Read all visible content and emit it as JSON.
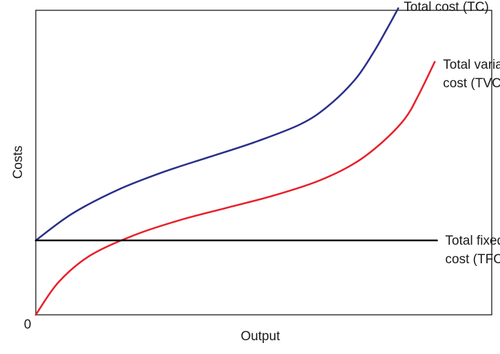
{
  "chart_data": {
    "type": "line",
    "title": "",
    "xlabel": "Output",
    "ylabel": "Costs",
    "origin_label": "0",
    "xlim": [
      0,
      100
    ],
    "ylim": [
      0,
      100
    ],
    "grid": false,
    "legend": "none",
    "series": [
      {
        "name": "Total cost (TC)",
        "label_lines": [
          "Total cost (TC)"
        ],
        "color": "#2b2f8a",
        "x": [
          0,
          8,
          18,
          28,
          38,
          48,
          58,
          64,
          70,
          74,
          77,
          79.5
        ],
        "y": [
          25,
          34,
          42,
          48,
          53,
          58,
          64,
          70,
          79,
          88,
          96,
          103
        ]
      },
      {
        "name": "Total variable cost (TVC)",
        "label_lines": [
          "Total variable",
          "cost (TVC)"
        ],
        "color": "#e8202a",
        "x": [
          0,
          5,
          12,
          22,
          32,
          42,
          52,
          62,
          70,
          76,
          81,
          84,
          87.5
        ],
        "y": [
          0,
          11,
          20,
          27,
          32,
          36,
          40,
          45,
          51,
          58,
          66,
          74,
          85
        ]
      },
      {
        "name": "Total fixed cost (TFC)",
        "label_lines": [
          "Total fixed",
          "cost (TFC)"
        ],
        "color": "#000000",
        "x": [
          0,
          88
        ],
        "y": [
          25,
          25
        ]
      }
    ]
  }
}
